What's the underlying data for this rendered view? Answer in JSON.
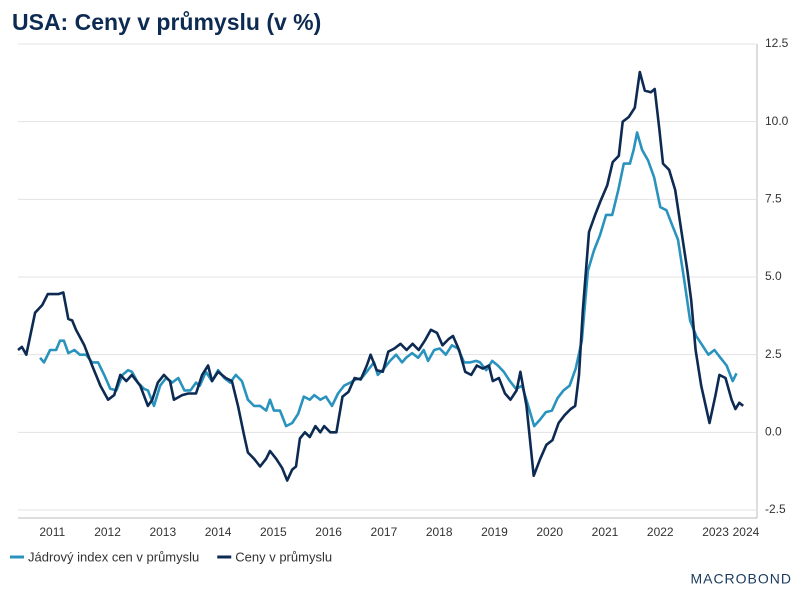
{
  "chart_data": {
    "type": "line",
    "title": "USA: Ceny v průmyslu (v %)",
    "brand": "MACROBOND",
    "xlim": [
      2010.88,
      2024.25
    ],
    "xticks": [
      {
        "value": 2011.5,
        "label": "2011"
      },
      {
        "value": 2012.5,
        "label": "2012"
      },
      {
        "value": 2013.5,
        "label": "2013"
      },
      {
        "value": 2014.5,
        "label": "2014"
      },
      {
        "value": 2015.5,
        "label": "2015"
      },
      {
        "value": 2016.5,
        "label": "2016"
      },
      {
        "value": 2017.5,
        "label": "2017"
      },
      {
        "value": 2018.5,
        "label": "2018"
      },
      {
        "value": 2019.5,
        "label": "2019"
      },
      {
        "value": 2020.5,
        "label": "2020"
      },
      {
        "value": 2021.5,
        "label": "2021"
      },
      {
        "value": 2022.5,
        "label": "2022"
      },
      {
        "value": 2023.5,
        "label": "2023"
      },
      {
        "value": 2024.05,
        "label": "2024"
      }
    ],
    "ylim": [
      -2.5,
      12.5
    ],
    "yticks": [
      -2.5,
      {
        "value": 0,
        "label": "0.0"
      },
      2.5,
      {
        "value": 5,
        "label": "5.0"
      },
      7.5,
      {
        "value": 10,
        "label": "10.0"
      },
      12.5
    ],
    "grid": true,
    "series": [
      {
        "name": "Jádrový index cen v průmyslu",
        "color": "#2a93bd",
        "x": [
          2011.28,
          2011.35,
          2011.46,
          2011.57,
          2011.64,
          2011.71,
          2011.79,
          2011.9,
          2012.0,
          2012.11,
          2012.22,
          2012.33,
          2012.44,
          2012.55,
          2012.66,
          2012.77,
          2012.87,
          2012.94,
          2013.05,
          2013.16,
          2013.23,
          2013.34,
          2013.45,
          2013.56,
          2013.67,
          2013.78,
          2013.89,
          2014.0,
          2014.1,
          2014.17,
          2014.28,
          2014.39,
          2014.5,
          2014.61,
          2014.72,
          2014.82,
          2014.93,
          2015.04,
          2015.15,
          2015.26,
          2015.37,
          2015.44,
          2015.51,
          2015.62,
          2015.73,
          2015.84,
          2015.95,
          2016.05,
          2016.16,
          2016.24,
          2016.35,
          2016.45,
          2016.56,
          2016.67,
          2016.78,
          2016.89,
          2016.99,
          2017.1,
          2017.21,
          2017.32,
          2017.39,
          2017.5,
          2017.61,
          2017.72,
          2017.83,
          2017.9,
          2018.01,
          2018.12,
          2018.22,
          2018.3,
          2018.41,
          2018.51,
          2018.62,
          2018.73,
          2018.84,
          2018.95,
          2019.06,
          2019.17,
          2019.24,
          2019.35,
          2019.46,
          2019.56,
          2019.67,
          2019.78,
          2019.89,
          2020.0,
          2020.11,
          2020.22,
          2020.32,
          2020.43,
          2020.54,
          2020.64,
          2020.75,
          2020.86,
          2020.97,
          2021.08,
          2021.19,
          2021.3,
          2021.41,
          2021.52,
          2021.63,
          2021.74,
          2021.84,
          2021.95,
          2022.02,
          2022.08,
          2022.17,
          2022.28,
          2022.39,
          2022.5,
          2022.61,
          2022.72,
          2022.82,
          2022.93,
          2023.04,
          2023.15,
          2023.26,
          2023.37,
          2023.48,
          2023.59,
          2023.7,
          2023.81,
          2023.88
        ],
        "values": [
          2.4,
          2.25,
          2.65,
          2.65,
          2.95,
          2.95,
          2.55,
          2.65,
          2.5,
          2.5,
          2.25,
          2.25,
          1.85,
          1.4,
          1.35,
          1.85,
          2.0,
          1.95,
          1.6,
          1.4,
          1.35,
          0.85,
          1.5,
          1.75,
          1.6,
          1.75,
          1.35,
          1.35,
          1.6,
          1.5,
          1.95,
          1.65,
          2.0,
          1.75,
          1.6,
          1.85,
          1.65,
          1.05,
          0.85,
          0.85,
          0.7,
          1.05,
          0.7,
          0.7,
          0.2,
          0.3,
          0.6,
          1.15,
          1.05,
          1.2,
          1.05,
          1.15,
          0.85,
          1.25,
          1.5,
          1.6,
          1.7,
          1.75,
          2.0,
          2.25,
          1.85,
          2.05,
          2.3,
          2.5,
          2.25,
          2.4,
          2.55,
          2.4,
          2.65,
          2.3,
          2.65,
          2.7,
          2.5,
          2.8,
          2.7,
          2.25,
          2.25,
          2.3,
          2.25,
          2.0,
          2.3,
          2.15,
          1.95,
          1.65,
          1.4,
          1.5,
          0.85,
          0.2,
          0.4,
          0.65,
          0.7,
          1.1,
          1.35,
          1.5,
          2.05,
          2.95,
          5.2,
          5.85,
          6.35,
          7.0,
          7.0,
          7.8,
          8.65,
          8.65,
          9.1,
          9.65,
          9.1,
          8.75,
          8.2,
          7.25,
          7.15,
          6.65,
          6.2,
          4.95,
          3.6,
          3.1,
          2.8,
          2.5,
          2.65,
          2.4,
          2.15,
          1.65,
          1.9
        ]
      },
      {
        "name": "Ceny v průmyslu",
        "color": "#0d2b52",
        "x": [
          2010.88,
          2010.95,
          2011.03,
          2011.19,
          2011.32,
          2011.42,
          2011.61,
          2011.7,
          2011.79,
          2011.86,
          2011.93,
          2012.08,
          2012.22,
          2012.37,
          2012.51,
          2012.62,
          2012.73,
          2012.84,
          2012.94,
          2013.09,
          2013.23,
          2013.31,
          2013.41,
          2013.52,
          2013.63,
          2013.7,
          2013.85,
          2013.96,
          2014.1,
          2014.21,
          2014.32,
          2014.39,
          2014.5,
          2014.64,
          2014.75,
          2014.86,
          2014.97,
          2015.04,
          2015.15,
          2015.26,
          2015.37,
          2015.44,
          2015.55,
          2015.66,
          2015.75,
          2015.84,
          2015.91,
          2015.98,
          2016.07,
          2016.16,
          2016.26,
          2016.35,
          2016.42,
          2016.53,
          2016.64,
          2016.75,
          2016.86,
          2016.97,
          2017.08,
          2017.19,
          2017.26,
          2017.37,
          2017.48,
          2017.58,
          2017.69,
          2017.8,
          2017.91,
          2018.02,
          2018.13,
          2018.24,
          2018.35,
          2018.46,
          2018.56,
          2018.67,
          2018.75,
          2018.86,
          2018.97,
          2019.08,
          2019.18,
          2019.29,
          2019.4,
          2019.47,
          2019.58,
          2019.69,
          2019.79,
          2019.9,
          2019.97,
          2020.08,
          2020.21,
          2020.33,
          2020.44,
          2020.55,
          2020.66,
          2020.77,
          2020.88,
          2020.96,
          2021.03,
          2021.1,
          2021.21,
          2021.32,
          2021.42,
          2021.54,
          2021.64,
          2021.75,
          2021.82,
          2021.93,
          2022.04,
          2022.13,
          2022.22,
          2022.33,
          2022.4,
          2022.48,
          2022.55,
          2022.66,
          2022.77,
          2022.88,
          2022.99,
          2023.06,
          2023.14,
          2023.24,
          2023.39,
          2023.5,
          2023.57,
          2023.68,
          2023.79,
          2023.86,
          2023.93,
          2024.0
        ],
        "values": [
          2.65,
          2.75,
          2.5,
          3.85,
          4.1,
          4.45,
          4.45,
          4.5,
          3.65,
          3.6,
          3.3,
          2.8,
          2.15,
          1.5,
          1.05,
          1.2,
          1.85,
          1.65,
          1.85,
          1.5,
          0.85,
          1.05,
          1.6,
          1.85,
          1.65,
          1.05,
          1.2,
          1.25,
          1.25,
          1.85,
          2.15,
          1.65,
          1.95,
          1.75,
          1.65,
          0.85,
          -0.1,
          -0.65,
          -0.85,
          -1.1,
          -0.85,
          -0.6,
          -0.85,
          -1.15,
          -1.55,
          -1.2,
          -1.1,
          -0.2,
          0,
          -0.15,
          0.2,
          0,
          0.2,
          0,
          0,
          1.15,
          1.3,
          1.75,
          1.7,
          2.15,
          2.5,
          2.0,
          1.95,
          2.6,
          2.7,
          2.85,
          2.65,
          2.85,
          2.65,
          2.95,
          3.3,
          3.2,
          2.8,
          3.0,
          3.1,
          2.65,
          1.95,
          1.85,
          2.15,
          2.05,
          2.15,
          1.65,
          1.75,
          1.25,
          1.05,
          1.35,
          1.95,
          0.85,
          -1.4,
          -0.85,
          -0.4,
          -0.25,
          0.3,
          0.55,
          0.75,
          0.85,
          1.85,
          3.95,
          6.45,
          7.0,
          7.45,
          7.95,
          8.7,
          8.9,
          10.0,
          10.15,
          10.45,
          11.6,
          11.0,
          10.95,
          11.05,
          9.8,
          8.65,
          8.45,
          7.8,
          6.5,
          5.2,
          4.25,
          2.65,
          1.5,
          0.3,
          1.2,
          1.85,
          1.75,
          1.05,
          0.75,
          0.95,
          0.85
        ]
      }
    ]
  }
}
